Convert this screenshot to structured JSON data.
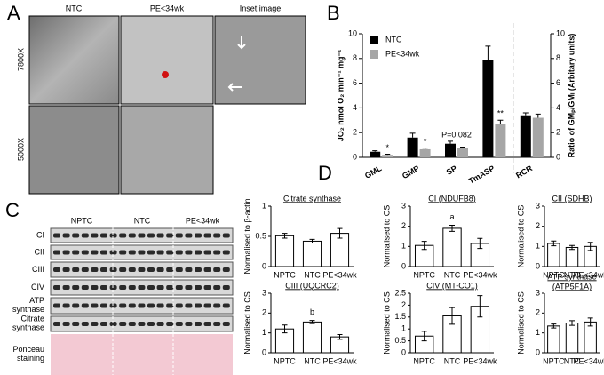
{
  "panels": {
    "labels": [
      "A",
      "B",
      "C",
      "D"
    ],
    "A": {
      "columns": [
        "NTC",
        "PE<34wk",
        "Inset image"
      ],
      "rows": [
        "7800X",
        "5000X"
      ]
    },
    "C": {
      "groups": [
        "NPTC",
        "NTC",
        "PE<34wk"
      ],
      "rows": [
        "CI",
        "CII",
        "CIII",
        "CIV",
        "ATP synthase",
        "Citrate synthase",
        "Ponceau staining"
      ]
    }
  },
  "chart_data": [
    {
      "type": "grouped-bar",
      "ylabel": "JO₂ nmol O₂ min⁻¹ mg⁻¹",
      "y2label": "Ratio of GMₚ/GMₗ (Arbitary units)",
      "categories": [
        "GML",
        "GMP",
        "SP",
        "TmASP",
        "RCR"
      ],
      "category_axis": [
        "y",
        "y",
        "y",
        "y",
        "y2"
      ],
      "series": [
        {
          "name": "NTC",
          "color": "#000000",
          "values": [
            0.45,
            1.6,
            1.1,
            7.9,
            3.4
          ],
          "errors": [
            0.08,
            0.35,
            0.2,
            1.1,
            0.2
          ]
        },
        {
          "name": "PE<34wk",
          "color": "#a6a6a6",
          "values": [
            0.2,
            0.65,
            0.75,
            2.7,
            3.2
          ],
          "errors": [
            0.05,
            0.1,
            0.08,
            0.3,
            0.3
          ]
        }
      ],
      "annotations": [
        {
          "text": "*",
          "category": "GML",
          "series": "PE<34wk"
        },
        {
          "text": "*",
          "category": "GMP",
          "series": "PE<34wk"
        },
        {
          "text": "P=0.082",
          "category": "SP",
          "series": "NTC"
        },
        {
          "text": "**",
          "category": "TmASP",
          "series": "PE<34wk"
        }
      ],
      "ylim": [
        0,
        10
      ],
      "yticks": [
        0,
        2,
        4,
        6,
        8,
        10
      ],
      "y2lim": [
        0,
        10
      ],
      "y2ticks": [
        0,
        2,
        4,
        6,
        8,
        10
      ],
      "legend": "upper-left"
    },
    {
      "type": "bar",
      "title": "Citrate synthase",
      "ylabel": "Normalised to β-actin",
      "categories": [
        "NPTC",
        "NTC",
        "PE<34wk"
      ],
      "values": [
        0.51,
        0.42,
        0.55
      ],
      "errors": [
        0.04,
        0.03,
        0.08
      ],
      "ylim": [
        0,
        1
      ],
      "yticks": [
        0,
        0.5,
        1
      ],
      "color": "#ffffff",
      "annotations": []
    },
    {
      "type": "bar",
      "title": "CI (NDUFB8)",
      "ylabel": "Normalised to CS",
      "categories": [
        "NPTC",
        "NTC",
        "PE<34wk"
      ],
      "values": [
        1.05,
        1.9,
        1.15
      ],
      "errors": [
        0.2,
        0.15,
        0.25
      ],
      "ylim": [
        0,
        3
      ],
      "yticks": [
        0,
        1,
        2,
        3
      ],
      "color": "#ffffff",
      "annotations": [
        {
          "text": "a",
          "category": "NTC"
        }
      ]
    },
    {
      "type": "bar",
      "title": "CII (SDHB)",
      "ylabel": "Normalised to CS",
      "categories": [
        "NPTC",
        "NTC",
        "PE<34wk"
      ],
      "values": [
        1.15,
        0.95,
        1.0
      ],
      "errors": [
        0.12,
        0.1,
        0.2
      ],
      "ylim": [
        0,
        3
      ],
      "yticks": [
        0,
        1,
        2,
        3
      ],
      "color": "#ffffff",
      "annotations": []
    },
    {
      "type": "bar",
      "title": "CIII (UQCRC2)",
      "ylabel": "Normalised to CS",
      "categories": [
        "NPTC",
        "NTC",
        "PE<34wk"
      ],
      "values": [
        1.2,
        1.55,
        0.8
      ],
      "errors": [
        0.2,
        0.08,
        0.12
      ],
      "ylim": [
        0,
        3
      ],
      "yticks": [
        0,
        1,
        2,
        3
      ],
      "color": "#ffffff",
      "annotations": [
        {
          "text": "b",
          "category": "NTC"
        }
      ]
    },
    {
      "type": "bar",
      "title": "CIV (MT-CO1)",
      "ylabel": "Normalised to CS",
      "categories": [
        "NPTC",
        "NTC",
        "PE<34wk"
      ],
      "values": [
        0.7,
        1.55,
        1.95
      ],
      "errors": [
        0.2,
        0.35,
        0.45
      ],
      "ylim": [
        0,
        2.5
      ],
      "yticks": [
        0,
        0.5,
        1,
        1.5,
        2,
        2.5
      ],
      "color": "#ffffff",
      "annotations": []
    },
    {
      "type": "bar",
      "title": [
        "ATP synthase",
        "(ATP5F1A)"
      ],
      "ylabel": "Normalised to CS",
      "categories": [
        "NPTC",
        "NTC",
        "PE<34wk"
      ],
      "values": [
        1.35,
        1.5,
        1.55
      ],
      "errors": [
        0.1,
        0.12,
        0.2
      ],
      "ylim": [
        0,
        3
      ],
      "yticks": [
        0,
        1,
        2,
        3
      ],
      "color": "#ffffff",
      "annotations": []
    }
  ]
}
